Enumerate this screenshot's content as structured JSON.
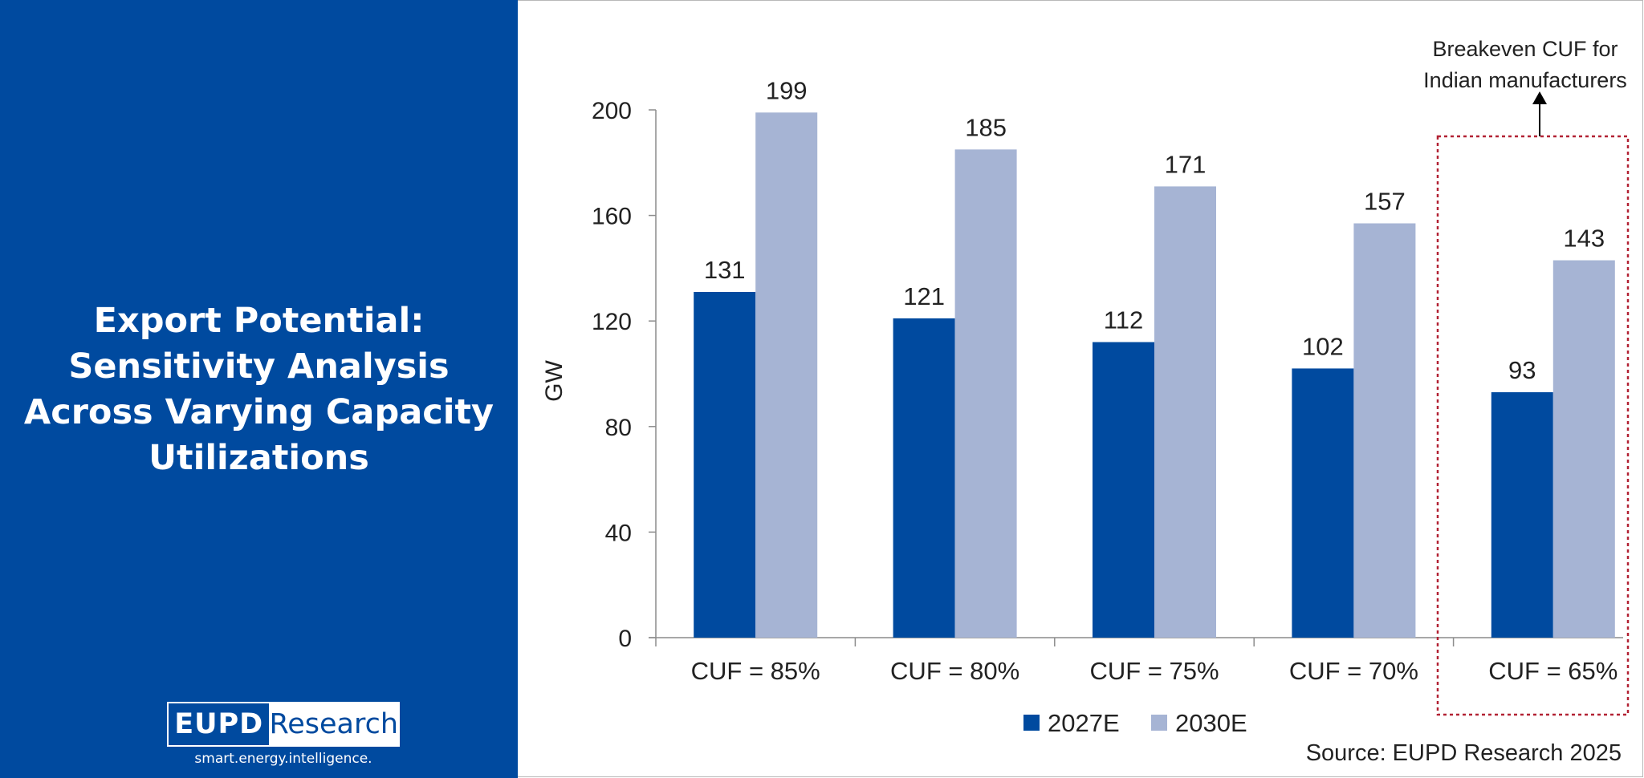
{
  "panel": {
    "title": "Export Potential:\nSensitivity Analysis\nAcross Varying Capacity\nUtilizations",
    "background": "#004a9f"
  },
  "logo": {
    "brand": "EUPD",
    "product": "Research",
    "tagline": "smart.energy.intelligence."
  },
  "source": "Source: EUPD Research 2025",
  "annotation": {
    "text_line1": "Breakeven CUF for",
    "text_line2": "Indian manufacturers",
    "highlight_category": "CUF = 65%",
    "box_color": "#b22234"
  },
  "chart_data": {
    "type": "bar",
    "categories": [
      "CUF = 85%",
      "CUF = 80%",
      "CUF = 75%",
      "CUF = 70%",
      "CUF = 65%"
    ],
    "series": [
      {
        "name": "2027E",
        "values": [
          131,
          121,
          112,
          102,
          93
        ],
        "color": "#004a9f"
      },
      {
        "name": "2030E",
        "values": [
          199,
          185,
          171,
          157,
          143
        ],
        "color": "#a6b4d4"
      }
    ],
    "ylabel": "GW",
    "xlabel": "",
    "ylim": [
      0,
      200
    ],
    "yticks": [
      0,
      40,
      80,
      120,
      160,
      200
    ],
    "grid": false,
    "legend": "bottom-center",
    "data_labels": true
  }
}
